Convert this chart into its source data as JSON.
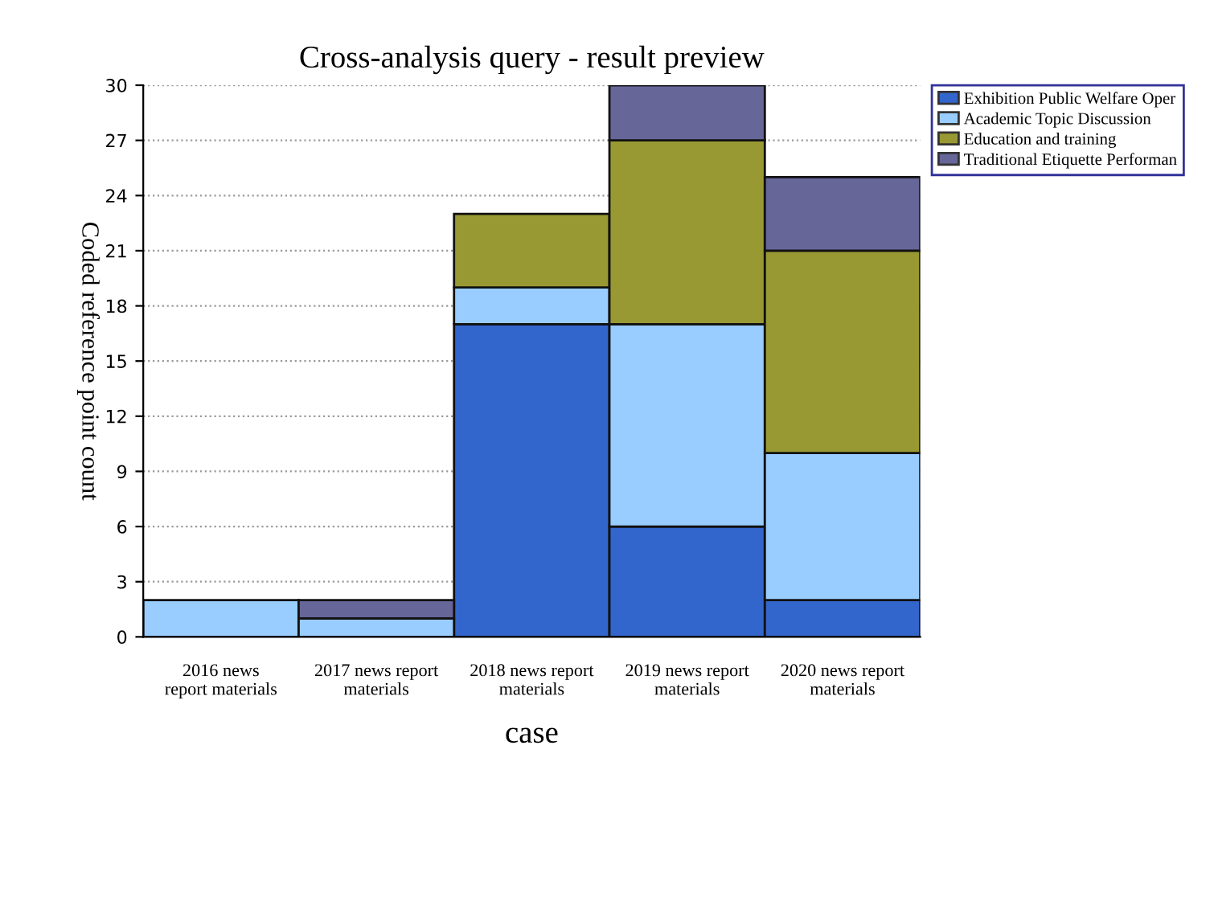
{
  "chart_data": {
    "type": "bar",
    "title": "Cross-analysis query - result preview",
    "xlabel": "case",
    "ylabel": "Coded reference point count",
    "categories": [
      "2016 news\nreport materials",
      "2017 news report\nmaterials",
      "2018 news report\nmaterials",
      "2019 news report\nmaterials",
      "2020 news report\nmaterials"
    ],
    "stacked": true,
    "ylim": [
      0,
      30
    ],
    "yticks": [
      0,
      3,
      6,
      9,
      12,
      15,
      18,
      21,
      24,
      27,
      30
    ],
    "grid": "y",
    "legend": "right",
    "series": [
      {
        "name": "Exhibition Public Welfare Oper",
        "color": "#3366cc",
        "values": [
          0,
          0,
          17,
          6,
          2
        ]
      },
      {
        "name": "Academic Topic Discussion",
        "color": "#99ccff",
        "values": [
          2,
          1,
          2,
          11,
          8
        ]
      },
      {
        "name": "Education and training",
        "color": "#999933",
        "values": [
          0,
          0,
          4,
          10,
          11
        ]
      },
      {
        "name": "Traditional Etiquette Performan",
        "color": "#666699",
        "values": [
          0,
          1,
          0,
          3,
          4
        ]
      }
    ]
  }
}
